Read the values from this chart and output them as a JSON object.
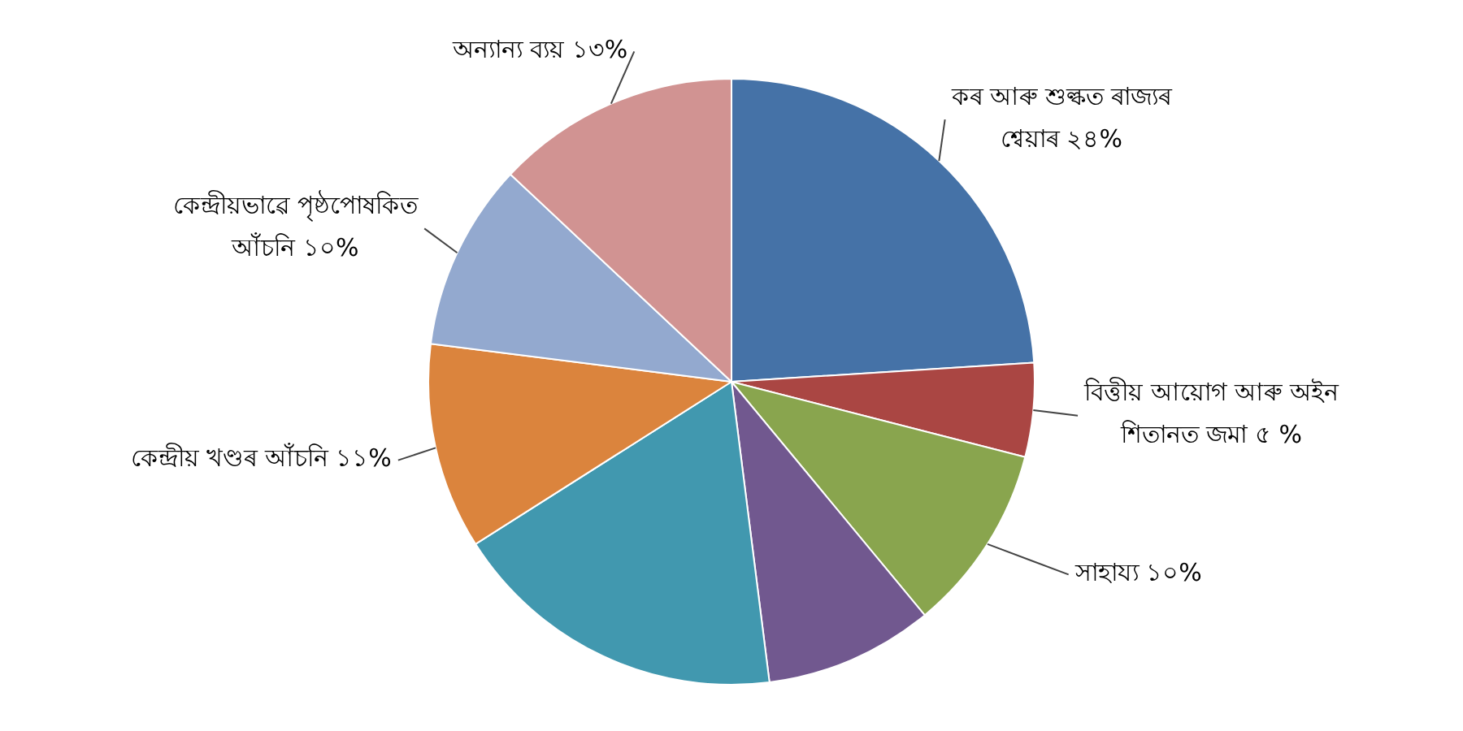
{
  "chart_data": {
    "type": "pie",
    "categories": [
      "কৰ আৰু শুল্কত ৰাজ্যৰ শ্বেয়াৰ",
      "বিত্তীয় আয়োগ আৰু অইন শিতানত জমা",
      "সাহায্য",
      null,
      null,
      "কেন্দ্ৰীয় খণ্ডৰ আঁচনি",
      "কেন্দ্ৰীয়ভাৱে পৃষ্ঠপোষকিত আঁচনি",
      "অন্যান্য ব্যয়"
    ],
    "values": [
      24,
      5,
      10,
      9,
      18,
      11,
      10,
      13
    ],
    "value_labels": [
      "২৪%",
      "৫ %",
      "১০%",
      null,
      null,
      "১১%",
      "১০%",
      "১৩%"
    ],
    "colors": [
      "#4572a7",
      "#aa4643",
      "#89a54e",
      "#71588f",
      "#4198af",
      "#db843d",
      "#93a9cf",
      "#d19392"
    ],
    "legend": false
  }
}
